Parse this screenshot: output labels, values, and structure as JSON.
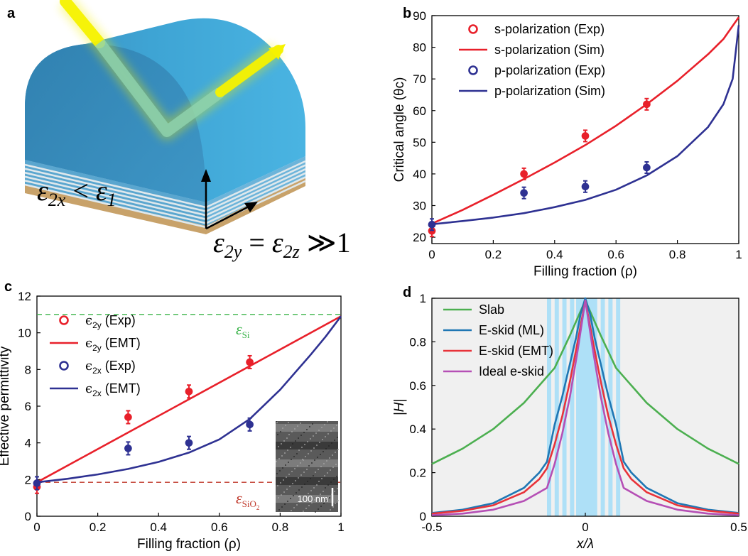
{
  "panel_a": {
    "letter": "a",
    "eq_left_main": "ε",
    "eq_left_sub": "2x",
    "eq_left_op": " < ",
    "eq_left_rhs_main": "ε",
    "eq_left_rhs_sub": "1",
    "eq_right_main": "ε",
    "eq_right_sub": "2y",
    "eq_right_eq": " =  ",
    "eq_right_rhs_main": "ε",
    "eq_right_rhs_sub": "2z",
    "eq_right_tail": " ≫1",
    "colors": {
      "dome": "#3a9fd0",
      "layer_light": "#d8e4ea",
      "substrate": "#c8a26a",
      "beam": "#f2f000"
    }
  },
  "chart_data": [
    {
      "panel": "b",
      "type": "line+scatter",
      "xlabel": "Filling fraction (ρ)",
      "ylabel": "Critical angle (θc)",
      "xlim": [
        0,
        1
      ],
      "ylim": [
        18,
        90
      ],
      "xticks": [
        "0",
        "0.2",
        "0.4",
        "0.6",
        "0.8",
        "1"
      ],
      "yticks": [
        "20",
        "30",
        "40",
        "50",
        "60",
        "70",
        "80",
        "90"
      ],
      "legend_position": "top-left",
      "series": [
        {
          "name": "s-polarization (Exp)",
          "kind": "scatter",
          "color": "#e8202a",
          "x": [
            0,
            0.3,
            0.5,
            0.7
          ],
          "y": [
            22,
            40,
            52,
            62
          ],
          "err": [
            1.8,
            1.8,
            1.8,
            1.8
          ]
        },
        {
          "name": "s-polarization (Sim)",
          "kind": "line",
          "color": "#e8202a",
          "x": [
            0,
            0.1,
            0.2,
            0.3,
            0.4,
            0.5,
            0.6,
            0.7,
            0.8,
            0.9,
            0.95,
            1.0
          ],
          "y": [
            24.3,
            28.6,
            33.4,
            38.4,
            43.6,
            49.1,
            55.2,
            62.0,
            69.4,
            77.8,
            82.6,
            89.5
          ]
        },
        {
          "name": "p-polarization (Exp)",
          "kind": "scatter",
          "color": "#2e3192",
          "x": [
            0,
            0.3,
            0.5,
            0.7
          ],
          "y": [
            24,
            34,
            36,
            42
          ],
          "err": [
            1.8,
            1.8,
            1.8,
            1.8
          ]
        },
        {
          "name": "p-polarization (Sim)",
          "kind": "line",
          "color": "#2e3192",
          "x": [
            0,
            0.1,
            0.2,
            0.3,
            0.4,
            0.5,
            0.6,
            0.7,
            0.8,
            0.9,
            0.95,
            0.98,
            1.0
          ],
          "y": [
            24.1,
            25.1,
            26.2,
            27.6,
            29.5,
            31.8,
            35.0,
            39.5,
            45.6,
            54.8,
            62.0,
            70.0,
            87.0
          ]
        }
      ]
    },
    {
      "panel": "c",
      "type": "line+scatter",
      "xlabel": "Filling fraction (ρ)",
      "ylabel": "Effective permittivity",
      "xlim": [
        0,
        1
      ],
      "ylim": [
        0,
        12
      ],
      "xticks": [
        "0",
        "0.2",
        "0.4",
        "0.6",
        "0.8",
        "1"
      ],
      "yticks": [
        "0",
        "2",
        "4",
        "6",
        "8",
        "10",
        "12"
      ],
      "legend_position": "top-left",
      "hlines": [
        {
          "value": 11,
          "color": "#3cb44b",
          "label_main": "ε",
          "label_sub": "Si"
        },
        {
          "value": 1.85,
          "color": "#c0392b",
          "label_main": "ε",
          "label_sub": "SiO",
          "label_subsub": "2"
        }
      ],
      "inset_scale": "100 nm",
      "series": [
        {
          "name": "ε2y (Exp)",
          "name_main": "ϵ",
          "name_sub": "2y",
          "name_tail": " (Exp)",
          "kind": "scatter",
          "color": "#e8202a",
          "x": [
            0,
            0.3,
            0.5,
            0.7
          ],
          "y": [
            1.6,
            5.4,
            6.8,
            8.4
          ],
          "err": [
            0.35,
            0.35,
            0.35,
            0.35
          ]
        },
        {
          "name": "ε2y (EMT)",
          "name_main": "ϵ",
          "name_sub": "2y",
          "name_tail": " (EMT)",
          "kind": "line",
          "color": "#e8202a",
          "x": [
            0,
            1
          ],
          "y": [
            1.85,
            10.9
          ]
        },
        {
          "name": "ε2x (Exp)",
          "name_main": "ϵ",
          "name_sub": "2x",
          "name_tail": " (Exp)",
          "kind": "scatter",
          "color": "#2e3192",
          "x": [
            0,
            0.3,
            0.5,
            0.7
          ],
          "y": [
            1.8,
            3.7,
            4.0,
            5.0
          ],
          "err": [
            0.35,
            0.35,
            0.35,
            0.35
          ]
        },
        {
          "name": "ε2x (EMT)",
          "name_main": "ϵ",
          "name_sub": "2x",
          "name_tail": " (EMT)",
          "kind": "line",
          "color": "#2e3192",
          "x": [
            0,
            0.1,
            0.2,
            0.3,
            0.4,
            0.5,
            0.6,
            0.7,
            0.8,
            0.9,
            0.95,
            1.0
          ],
          "y": [
            1.85,
            2.04,
            2.28,
            2.58,
            2.96,
            3.47,
            4.19,
            5.3,
            6.9,
            8.8,
            9.8,
            10.9
          ]
        }
      ]
    },
    {
      "panel": "d",
      "type": "line",
      "xlabel": "x/λ",
      "ylabel": "|H|",
      "xlim": [
        -0.5,
        0.5
      ],
      "ylim": [
        0,
        1
      ],
      "xticks": [
        "-0.5",
        "0",
        "0.5"
      ],
      "yticks": [
        "0",
        "0.2",
        "0.4",
        "0.6",
        "0.8",
        "1"
      ],
      "legend_position": "top-left",
      "background": "#f0f0f0",
      "multilayer_region": [
        -0.125,
        0.125
      ],
      "core_region": [
        -0.03,
        0.03
      ],
      "layer_color": "#aee0f7",
      "series": [
        {
          "name": "Slab",
          "color": "#4caf50",
          "x": [
            -0.5,
            -0.4,
            -0.3,
            -0.2,
            -0.1,
            -0.05,
            0,
            0.05,
            0.1,
            0.2,
            0.3,
            0.4,
            0.5
          ],
          "y": [
            0.24,
            0.31,
            0.4,
            0.52,
            0.68,
            0.83,
            0.99,
            0.83,
            0.68,
            0.52,
            0.4,
            0.31,
            0.24
          ]
        },
        {
          "name": "E-skid (ML)",
          "color": "#1f77b4",
          "x": [
            -0.5,
            -0.4,
            -0.3,
            -0.2,
            -0.15,
            -0.125,
            -0.1,
            -0.075,
            -0.05,
            -0.03,
            -0.015,
            0,
            0.015,
            0.03,
            0.05,
            0.075,
            0.1,
            0.125,
            0.15,
            0.2,
            0.3,
            0.4,
            0.5
          ],
          "y": [
            0.015,
            0.03,
            0.06,
            0.13,
            0.2,
            0.25,
            0.42,
            0.55,
            0.7,
            0.82,
            0.93,
            1.0,
            0.93,
            0.82,
            0.7,
            0.55,
            0.42,
            0.25,
            0.2,
            0.13,
            0.06,
            0.03,
            0.015
          ]
        },
        {
          "name": "E-skid (EMT)",
          "color": "#e8333a",
          "x": [
            -0.5,
            -0.4,
            -0.3,
            -0.2,
            -0.15,
            -0.125,
            -0.1,
            -0.075,
            -0.05,
            -0.025,
            0,
            0.025,
            0.05,
            0.075,
            0.1,
            0.125,
            0.15,
            0.2,
            0.3,
            0.4,
            0.5
          ],
          "y": [
            0.012,
            0.025,
            0.05,
            0.11,
            0.17,
            0.22,
            0.33,
            0.46,
            0.62,
            0.8,
            0.99,
            0.8,
            0.62,
            0.46,
            0.33,
            0.22,
            0.17,
            0.11,
            0.05,
            0.025,
            0.012
          ]
        },
        {
          "name": "Ideal e-skid",
          "color": "#b54fb5",
          "x": [
            -0.5,
            -0.4,
            -0.3,
            -0.2,
            -0.125,
            -0.1,
            -0.075,
            -0.05,
            -0.025,
            0,
            0.025,
            0.05,
            0.075,
            0.1,
            0.125,
            0.2,
            0.3,
            0.4,
            0.5
          ],
          "y": [
            0.005,
            0.012,
            0.03,
            0.07,
            0.13,
            0.24,
            0.38,
            0.55,
            0.76,
            0.99,
            0.76,
            0.55,
            0.38,
            0.24,
            0.13,
            0.07,
            0.03,
            0.012,
            0.005
          ]
        }
      ]
    }
  ]
}
